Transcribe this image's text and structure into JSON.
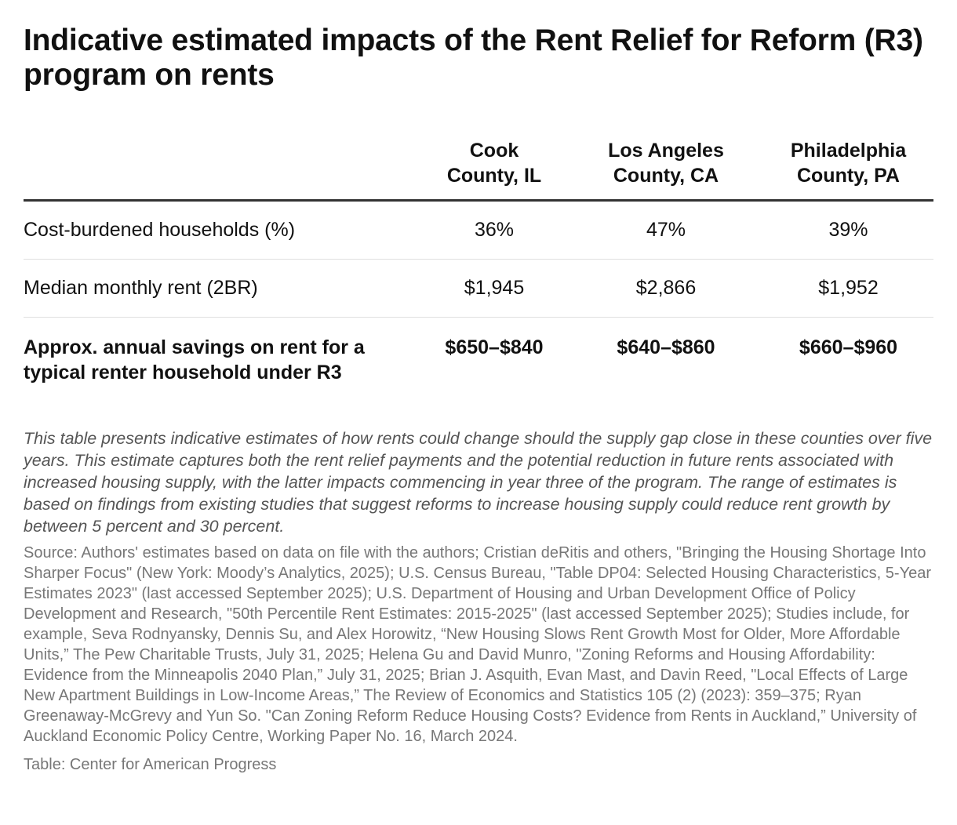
{
  "title": "Indicative estimated impacts of the Rent Relief for Reform (R3) program on rents",
  "chart_data": {
    "type": "table",
    "columns": [
      "",
      "Cook County, IL",
      "Los Angeles County, CA",
      "Philadelphia County, PA"
    ],
    "rows": [
      {
        "label": "Cost-burdened households (%)",
        "values": [
          "36%",
          "47%",
          "39%"
        ],
        "bold": false
      },
      {
        "label": "Median monthly rent (2BR)",
        "values": [
          "$1,945",
          "$2,866",
          "$1,952"
        ],
        "bold": false
      },
      {
        "label": "Approx. annual savings on rent for a typical renter household under R3",
        "values": [
          "$650–$840",
          "$640–$860",
          "$660–$960"
        ],
        "bold": true
      }
    ]
  },
  "notes": "This table presents indicative estimates of how rents could change should the supply gap close in these counties over five years. This estimate captures both the rent relief payments and the potential reduction in future rents associated with increased housing supply, with the latter impacts commencing in year three of the program.  The range of estimates is based on findings from existing studies that suggest reforms to increase housing supply could reduce rent growth by between 5 percent and 30 percent.",
  "source": "Source: Authors' estimates based on data on file with the authors; Cristian deRitis and others, \"Bringing the Housing Shortage Into Sharper Focus\" (New York: Moody’s Analytics, 2025); U.S. Census Bureau, \"Table DP04: Selected Housing Characteristics, 5-Year Estimates 2023\" (last accessed September 2025); U.S. Department of Housing and Urban Development Office of Policy Development and Research, \"50th Percentile Rent Estimates: 2015-2025\" (last accessed September 2025); Studies include, for example, Seva Rodnyansky, Dennis Su, and Alex Horowitz, “New Housing Slows Rent Growth Most for Older, More Affordable Units,” The Pew Charitable Trusts, July 31, 2025; Helena Gu and David Munro, \"Zoning Reforms and Housing Affordability: Evidence from the Minneapolis 2040 Plan,” July 31, 2025; Brian J. Asquith, Evan Mast, and Davin Reed, \"Local Effects of Large New Apartment Buildings in Low-Income Areas,” The Review of Economics and Statistics 105 (2) (2023): 359–375; Ryan Greenaway-McGrevy and Yun So. \"Can Zoning Reform Reduce Housing Costs? Evidence from Rents in Auckland,” University of Auckland Economic Policy Centre, Working Paper No. 16, March 2024.",
  "credit": "Table: Center for American Progress"
}
